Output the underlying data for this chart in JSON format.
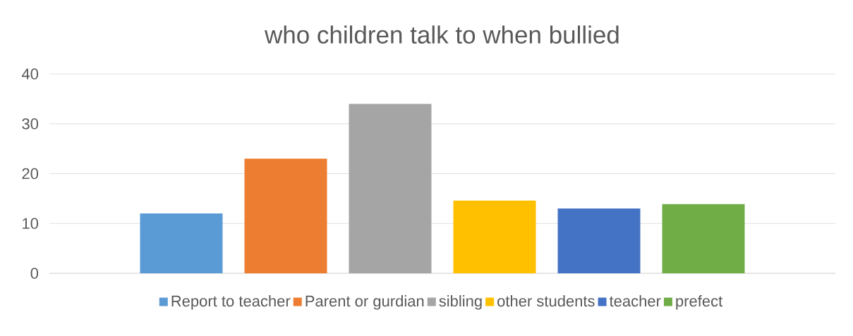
{
  "chart_data": {
    "type": "bar",
    "title": "who children talk to when bullied",
    "categories": [
      null
    ],
    "series": [
      {
        "name": "Report to teacher",
        "color": "#5b9bd5",
        "values": [
          12
        ]
      },
      {
        "name": "Parent or gurdian",
        "color": "#ed7d31",
        "values": [
          23
        ]
      },
      {
        "name": "sibling",
        "color": "#a5a5a5",
        "values": [
          34
        ]
      },
      {
        "name": "other students",
        "color": "#ffc000",
        "values": [
          14.6
        ]
      },
      {
        "name": "teacher",
        "color": "#4472c4",
        "values": [
          13
        ]
      },
      {
        "name": "prefect",
        "color": "#70ad47",
        "values": [
          13.9
        ]
      }
    ],
    "ylim": [
      0,
      40
    ],
    "yticks": [
      0,
      10,
      20,
      30,
      40
    ],
    "grid": "y",
    "legend": "bottom",
    "tick_labels": "y"
  }
}
